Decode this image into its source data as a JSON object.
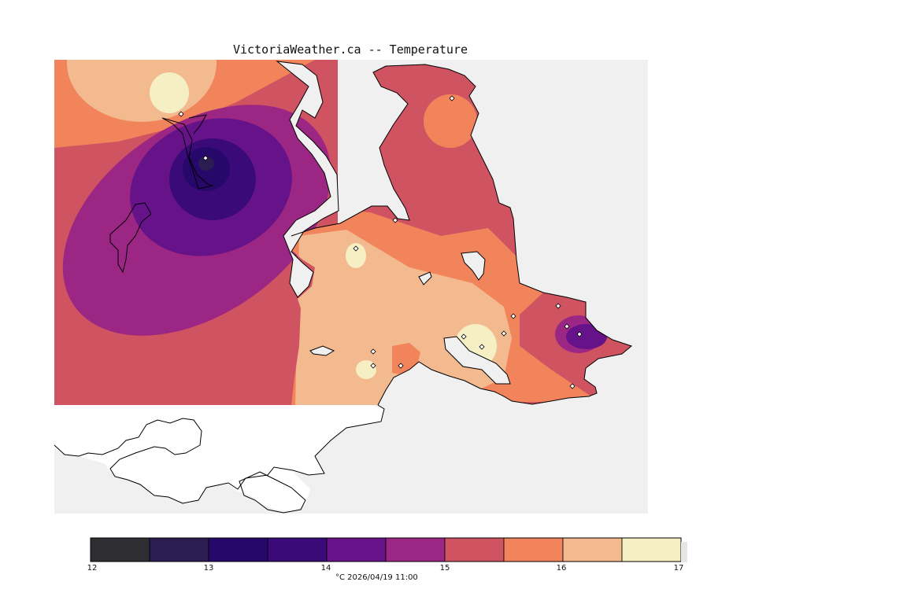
{
  "title": "VictoriaWeather.ca -- Temperature",
  "legend": {
    "units_timestamp": "°C  2026/04/19 11:00",
    "ticks": [
      "12",
      "13",
      "14",
      "15",
      "16",
      "17"
    ],
    "bins": [
      {
        "from": 12.0,
        "to": 12.5,
        "color": "#2e2e33"
      },
      {
        "from": 12.5,
        "to": 13.0,
        "color": "#2b1c52"
      },
      {
        "from": 13.0,
        "to": 13.5,
        "color": "#26086a"
      },
      {
        "from": 13.5,
        "to": 14.0,
        "color": "#3a0a78"
      },
      {
        "from": 14.0,
        "to": 14.5,
        "color": "#661289"
      },
      {
        "from": 14.5,
        "to": 15.0,
        "color": "#9c2684"
      },
      {
        "from": 15.0,
        "to": 15.5,
        "color": "#d05362"
      },
      {
        "from": 15.5,
        "to": 16.0,
        "color": "#f2845c"
      },
      {
        "from": 16.0,
        "to": 16.5,
        "color": "#f3b98f"
      },
      {
        "from": 16.5,
        "to": 17.0,
        "color": "#f6efc4"
      }
    ]
  },
  "colors": {
    "background": "#f0f0f0",
    "land_outline": "#000000",
    "station_marker": "#ffffff"
  },
  "station_count": 16
}
